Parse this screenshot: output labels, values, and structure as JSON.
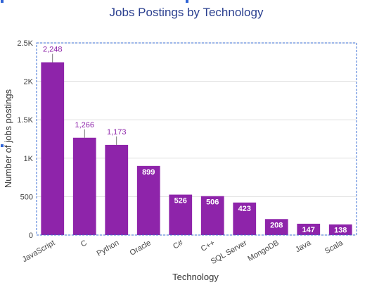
{
  "chart_data": {
    "type": "bar",
    "title": "Jobs Postings by Technology",
    "xlabel": "Technology",
    "ylabel": "Number of jobs postings",
    "categories": [
      "JavaScript",
      "C",
      "Python",
      "Oracle",
      "C#",
      "C++",
      "SQL Server",
      "MongoDB",
      "Java",
      "Scala"
    ],
    "values": [
      2248,
      1266,
      1173,
      899,
      526,
      506,
      423,
      208,
      147,
      138
    ],
    "value_labels": [
      "2,248",
      "1,266",
      "1,173",
      "899",
      "526",
      "506",
      "423",
      "208",
      "147",
      "138"
    ],
    "ylim": [
      0,
      2500
    ],
    "yticks": [
      0,
      500,
      1000,
      1500,
      2000,
      2500
    ],
    "ytick_labels": [
      "0",
      "500",
      "1K",
      "1.5K",
      "2K",
      "2.5K"
    ],
    "grid": true,
    "colors": {
      "bar": "#8e24aa",
      "grid": "#e0e0e0",
      "title": "#2a3f8f",
      "frame": "#3b6fd6"
    }
  }
}
